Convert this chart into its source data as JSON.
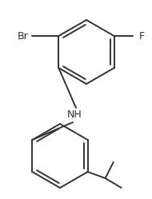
{
  "background_color": "#ffffff",
  "line_color": "#333333",
  "label_color": "#333333",
  "br_label": "Br",
  "f_label": "F",
  "nh_label": "NH",
  "figsize": [
    1.9,
    2.49
  ],
  "dpi": 100,
  "line_width": 1.4,
  "font_size": 9,
  "inner_shrink": 0.18
}
